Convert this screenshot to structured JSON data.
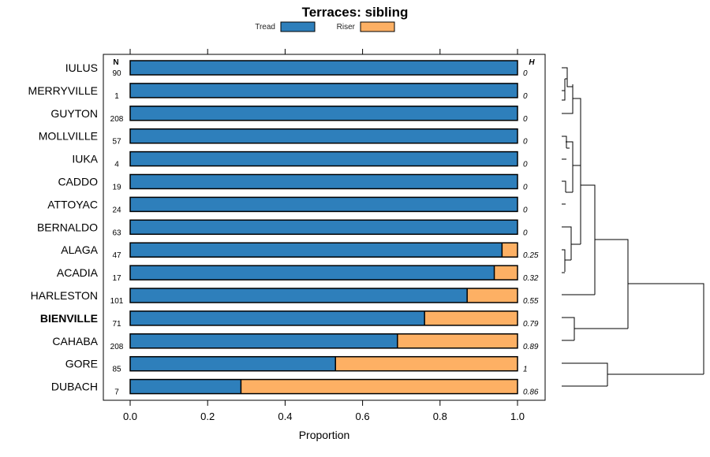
{
  "chart_data": {
    "type": "bar",
    "stacked": true,
    "orientation": "horizontal",
    "title": "Terraces: sibling",
    "xlabel": "Proportion",
    "xlim": [
      0,
      1
    ],
    "xticks": [
      "0.0",
      "0.2",
      "0.4",
      "0.6",
      "0.8",
      "1.0"
    ],
    "xtick_values": [
      0,
      0.2,
      0.4,
      0.6,
      0.8,
      1.0
    ],
    "n_header": "N",
    "h_header": "H",
    "highlight": "BIENVILLE",
    "legend": {
      "position": "top",
      "entries": [
        {
          "name": "Tread",
          "color": "#2e7fbb"
        },
        {
          "name": "Riser",
          "color": "#fdb064"
        }
      ]
    },
    "categories": [
      "IULUS",
      "MERRYVILLE",
      "GUYTON",
      "MOLLVILLE",
      "IUKA",
      "CADDO",
      "ATTOYAC",
      "BERNALDO",
      "ALAGA",
      "ACADIA",
      "HARLESTON",
      "BIENVILLE",
      "CAHABA",
      "GORE",
      "DUBACH"
    ],
    "n_values": [
      "90",
      "1",
      "208",
      "57",
      "4",
      "19",
      "24",
      "63",
      "47",
      "17",
      "101",
      "71",
      "208",
      "85",
      "7"
    ],
    "h_values": [
      "0",
      "0",
      "0",
      "0",
      "0",
      "0",
      "0",
      "0",
      "0.25",
      "0.32",
      "0.55",
      "0.79",
      "0.89",
      "1",
      "0.86"
    ],
    "series": [
      {
        "name": "Tread",
        "values": [
          1,
          1,
          1,
          1,
          1,
          1,
          1,
          1,
          0.96,
          0.94,
          0.87,
          0.76,
          0.69,
          0.53,
          0.286
        ]
      },
      {
        "name": "Riser",
        "values": [
          0,
          0,
          0,
          0,
          0,
          0,
          0,
          0,
          0.04,
          0.06,
          0.13,
          0.24,
          0.31,
          0.47,
          0.714
        ]
      }
    ]
  }
}
